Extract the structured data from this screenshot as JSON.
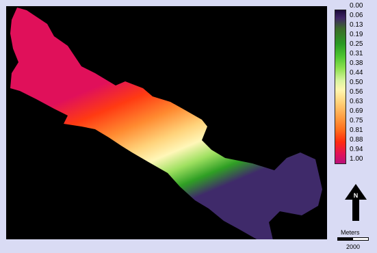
{
  "legend": {
    "labels": [
      "0.00",
      "0.06",
      "0.13",
      "0.19",
      "0.25",
      "0.31",
      "0.38",
      "0.44",
      "0.50",
      "0.56",
      "0.63",
      "0.69",
      "0.75",
      "0.81",
      "0.88",
      "0.94",
      "1.00"
    ]
  },
  "north_arrow": {
    "label": "N"
  },
  "scale": {
    "unit": "Meters",
    "value": "2000"
  }
}
